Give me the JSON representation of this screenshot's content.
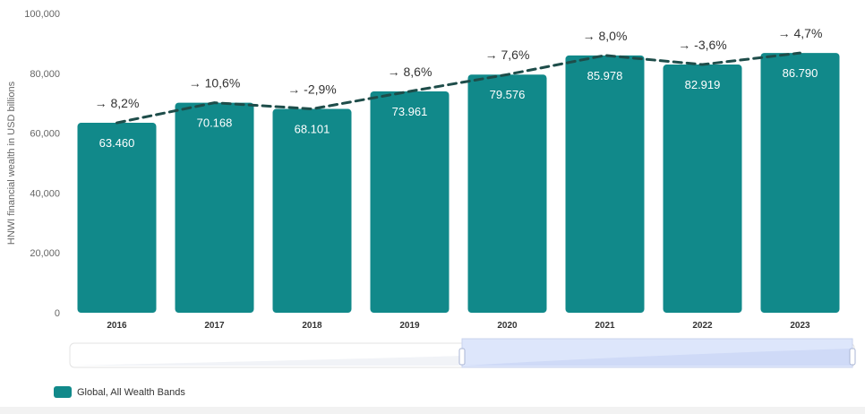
{
  "colors": {
    "bar": "#11898a",
    "trend_line": "#1e4d4a",
    "grid": "#e6e6e6",
    "navigator_fill": "#dde6fb",
    "navigator_border": "#c9d3ee"
  },
  "legend": {
    "label": "Global, All Wealth Bands"
  },
  "chart_data": {
    "type": "bar",
    "title": "",
    "xlabel": "",
    "ylabel": "HNWI financial wealth in USD billions",
    "ylim": [
      0,
      100000
    ],
    "yticks": [
      "0",
      "20,000",
      "40,000",
      "60,000",
      "80,000",
      "100,000"
    ],
    "categories": [
      "2016",
      "2017",
      "2018",
      "2019",
      "2020",
      "2021",
      "2022",
      "2023"
    ],
    "series": [
      {
        "name": "Global, All Wealth Bands",
        "values": [
          63460,
          70168,
          68101,
          73961,
          79576,
          85978,
          82919,
          86790
        ],
        "value_labels": [
          "63.460",
          "70.168",
          "68.101",
          "73.961",
          "79.576",
          "85.978",
          "82.919",
          "86.790"
        ]
      }
    ],
    "growth_labels": [
      "→ 8,2%",
      "→ 10,6%",
      "→ -2,9%",
      "→ 8,6%",
      "→ 7,6%",
      "→ 8,0%",
      "→ -3,6%",
      "→ 4,7%"
    ],
    "grid": false,
    "legend_position": "bottom-left",
    "trend_line": "dashed"
  }
}
